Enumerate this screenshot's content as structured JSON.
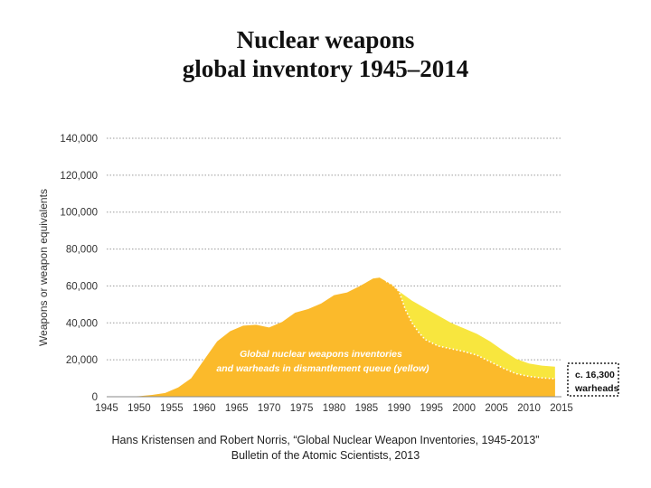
{
  "title": {
    "line1": "Nuclear weapons",
    "line2": "global inventory 1945–2014"
  },
  "chart_data": {
    "type": "area",
    "ylabel": "Weapons or weapon equivalents",
    "xlabel": "",
    "xlim": [
      1945,
      2015
    ],
    "ylim": [
      0,
      140000
    ],
    "x_ticks": [
      "1945",
      "1950",
      "1955",
      "1960",
      "1965",
      "1970",
      "1975",
      "1980",
      "1985",
      "1990",
      "1995",
      "2000",
      "2005",
      "2010",
      "2015"
    ],
    "y_ticks": [
      "0",
      "20,000",
      "40,000",
      "60,000",
      "80,000",
      "100,000",
      "120,000",
      "140,000"
    ],
    "grid": true,
    "series": [
      {
        "name": "Global nuclear weapons inventories",
        "color": "#FBBA2B",
        "x": [
          1945,
          1946,
          1948,
          1950,
          1952,
          1954,
          1956,
          1958,
          1960,
          1962,
          1964,
          1966,
          1968,
          1970,
          1972,
          1974,
          1976,
          1978,
          1980,
          1982,
          1984,
          1985,
          1986,
          1987,
          1988,
          1989,
          1990,
          1991,
          1992,
          1993,
          1994,
          1996,
          1998,
          2000,
          2002,
          2004,
          2006,
          2008,
          2010,
          2012,
          2014
        ],
        "values": [
          0,
          9,
          50,
          300,
          1000,
          2000,
          5000,
          10000,
          20000,
          30000,
          35500,
          38500,
          39000,
          37500,
          40500,
          45500,
          47500,
          50500,
          55000,
          56500,
          60000,
          62000,
          64000,
          64500,
          62500,
          60500,
          57000,
          47000,
          40000,
          35000,
          31000,
          27500,
          26000,
          24500,
          22500,
          19000,
          15500,
          12500,
          11000,
          10200,
          9800
        ]
      },
      {
        "name": "Warheads in dismantlement queue (yellow)",
        "color": "#F8E63E",
        "x": [
          1985,
          1986,
          1987,
          1988,
          1989,
          1990,
          1992,
          1994,
          1996,
          1998,
          2000,
          2002,
          2004,
          2006,
          2008,
          2010,
          2012,
          2014
        ],
        "values": [
          62000,
          64000,
          64500,
          62500,
          60500,
          57000,
          52000,
          48000,
          44000,
          40000,
          37000,
          34000,
          30000,
          25000,
          20500,
          18000,
          16800,
          16300
        ]
      }
    ],
    "annotations": {
      "inside_line1": "Global nuclear weapons inventories",
      "inside_line2": "and warheads in dismantlement queue (yellow)",
      "callout_line1": "c. 16,300",
      "callout_line2": "warheads"
    }
  },
  "source": {
    "line1": "Hans Kristensen and Robert Norris, “Global Nuclear Weapon Inventories, 1945-2013”",
    "line2": "Bulletin of the Atomic Scientists, 2013"
  }
}
